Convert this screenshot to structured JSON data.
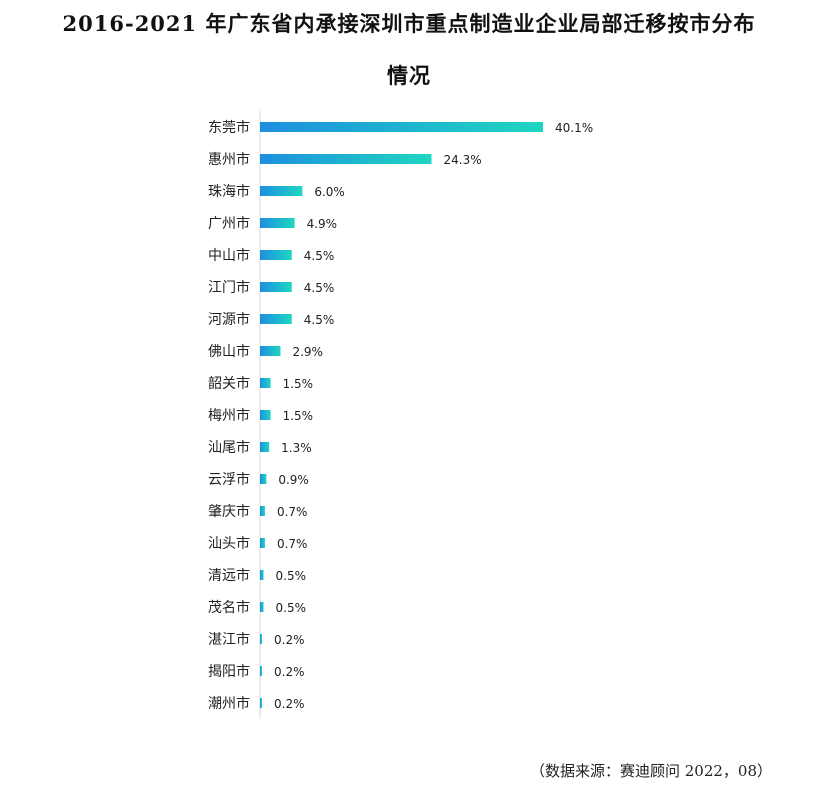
{
  "title": {
    "line1": "2016-2021 年广东省内承接深圳市重点制造业企业局部迁移按市分布",
    "line2": "情况"
  },
  "source": "（数据来源：赛迪顾问 2022，08）",
  "colors": {
    "bar_start": "#1E8FE0",
    "bar_end": "#1FD6C0",
    "text": "#222222"
  },
  "chart_data": {
    "type": "bar",
    "orientation": "horizontal",
    "title": "2016-2021 年广东省内承接深圳市重点制造业企业局部迁移按市分布情况",
    "categories": [
      "东莞市",
      "惠州市",
      "珠海市",
      "广州市",
      "中山市",
      "江门市",
      "河源市",
      "佛山市",
      "韶关市",
      "梅州市",
      "汕尾市",
      "云浮市",
      "肇庆市",
      "汕头市",
      "清远市",
      "茂名市",
      "湛江市",
      "揭阳市",
      "潮州市"
    ],
    "values": [
      40.1,
      24.3,
      6.0,
      4.9,
      4.5,
      4.5,
      4.5,
      2.9,
      1.5,
      1.5,
      1.3,
      0.9,
      0.7,
      0.7,
      0.5,
      0.5,
      0.2,
      0.2,
      0.2
    ],
    "labels": [
      "40.1%",
      "24.3%",
      "6.0%",
      "4.9%",
      "4.5%",
      "4.5%",
      "4.5%",
      "2.9%",
      "1.5%",
      "1.5%",
      "1.3%",
      "0.9%",
      "0.7%",
      "0.7%",
      "0.5%",
      "0.5%",
      "0.2%",
      "0.2%",
      "0.2%"
    ],
    "unit": "%",
    "xlim": [
      0,
      40.1
    ],
    "grid": false,
    "legend": "none"
  }
}
